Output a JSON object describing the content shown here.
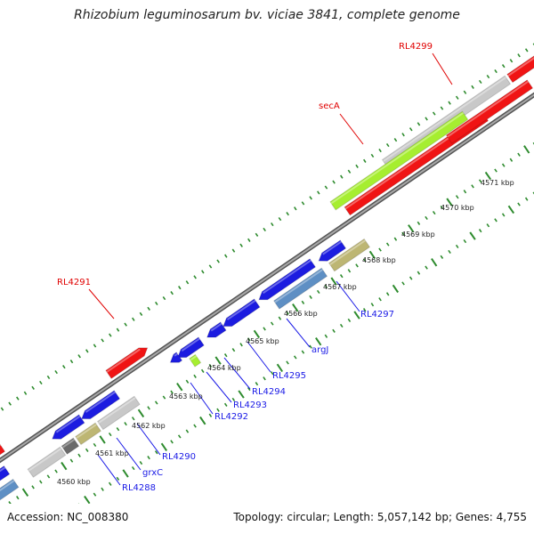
{
  "title": "Rhizobium leguminosarum bv. viciae 3841, complete genome",
  "footer": {
    "accession": "Accession: NC_008380",
    "stats": "Topology: circular; Length: 5,057,142 bp; Genes: 4,755"
  },
  "colors": {
    "background": "#ffffff",
    "backbone": "#8c8c8c",
    "tick": "#2e8b2e",
    "forward_label": "#e00000",
    "reverse_label": "#1a1ae6",
    "red": "#f01414",
    "gray": "#c8c8c8",
    "lime": "#a6ee30",
    "blue": "#1c1ce0",
    "steel": "#5e8fc4",
    "khaki": "#bdb673",
    "darkgray": "#6a6a6a"
  },
  "ruler": [
    {
      "label": "4560 kbp"
    },
    {
      "label": "4561 kbp"
    },
    {
      "label": "4562 kbp"
    },
    {
      "label": "4563 kbp"
    },
    {
      "label": "4564 kbp"
    },
    {
      "label": "4565 kbp"
    },
    {
      "label": "4566 kbp"
    },
    {
      "label": "4567 kbp"
    },
    {
      "label": "4568 kbp"
    },
    {
      "label": "4569 kbp"
    },
    {
      "label": "4570 kbp"
    },
    {
      "label": "4571 kbp"
    }
  ],
  "gene_labels": {
    "forward": [
      "RL4299",
      "secA",
      "RL4291"
    ],
    "reverse": [
      "RL4297",
      "argJ",
      "RL4295",
      "RL4294",
      "RL4293",
      "RL4292",
      "RL4290",
      "grxC",
      "RL4288"
    ]
  }
}
